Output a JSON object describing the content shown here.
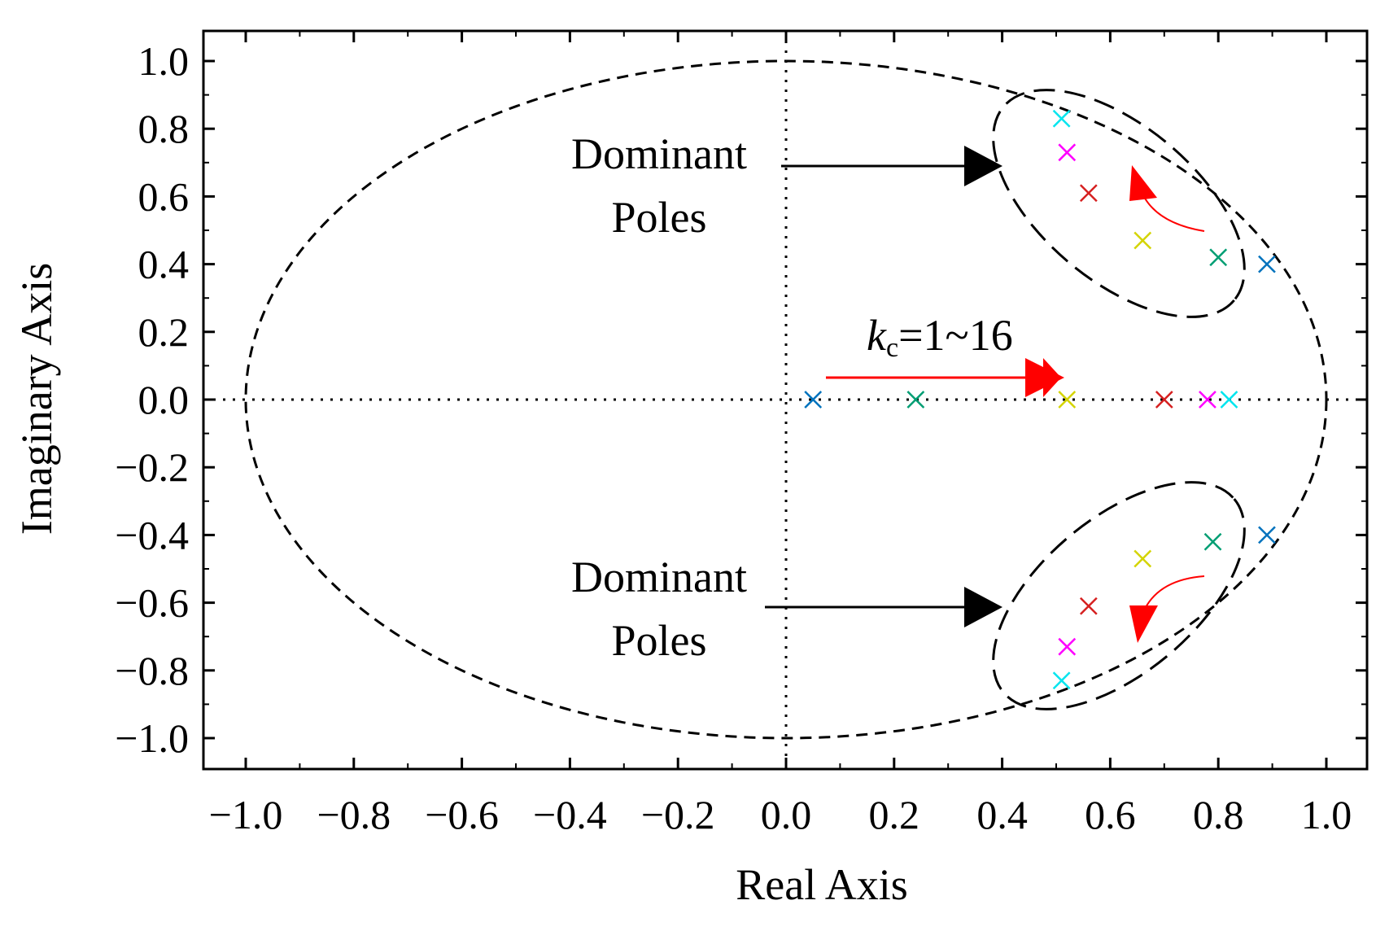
{
  "chart_data": {
    "type": "scatter",
    "xlabel": "Real Axis",
    "ylabel": "Imaginary Axis",
    "xlim": [
      -1.09,
      1.09
    ],
    "ylim": [
      -1.09,
      1.09
    ],
    "x_ticks": [
      "−1.0",
      "−0.8",
      "−0.6",
      "−0.4",
      "−0.2",
      "0.0",
      "0.2",
      "0.4",
      "0.6",
      "0.8",
      "1.0"
    ],
    "y_ticks": [
      "1.0",
      "0.8",
      "0.6",
      "0.4",
      "0.2",
      "0.0",
      "−0.2",
      "−0.4",
      "−0.6",
      "−0.8",
      "−1.0"
    ],
    "grid": false,
    "unit_circle": true,
    "marker": "x",
    "series": [
      {
        "color": "#0072BD",
        "points": [
          [
            0.05,
            0.0
          ],
          [
            0.89,
            0.4
          ],
          [
            0.89,
            -0.4
          ]
        ]
      },
      {
        "color": "#009E73",
        "points": [
          [
            0.24,
            0.0
          ],
          [
            0.8,
            0.42
          ],
          [
            0.79,
            -0.42
          ]
        ]
      },
      {
        "color": "#D4D400",
        "points": [
          [
            0.52,
            0.0
          ],
          [
            0.66,
            0.47
          ],
          [
            0.66,
            -0.47
          ]
        ]
      },
      {
        "color": "#D62020",
        "points": [
          [
            0.7,
            0.0
          ],
          [
            0.56,
            0.61
          ],
          [
            0.56,
            -0.61
          ]
        ]
      },
      {
        "color": "#FF00FF",
        "points": [
          [
            0.78,
            0.0
          ],
          [
            0.52,
            0.73
          ],
          [
            0.52,
            -0.73
          ]
        ]
      },
      {
        "color": "#00E5EE",
        "points": [
          [
            0.82,
            0.0
          ],
          [
            0.51,
            0.83
          ],
          [
            0.51,
            -0.83
          ]
        ]
      }
    ],
    "annotations": {
      "upper": [
        "Dominant",
        "Poles"
      ],
      "lower": [
        "Dominant",
        "Poles"
      ],
      "gain_label_italic": "k",
      "gain_label_sub": "c",
      "gain_label_rest": "=1~16"
    }
  }
}
